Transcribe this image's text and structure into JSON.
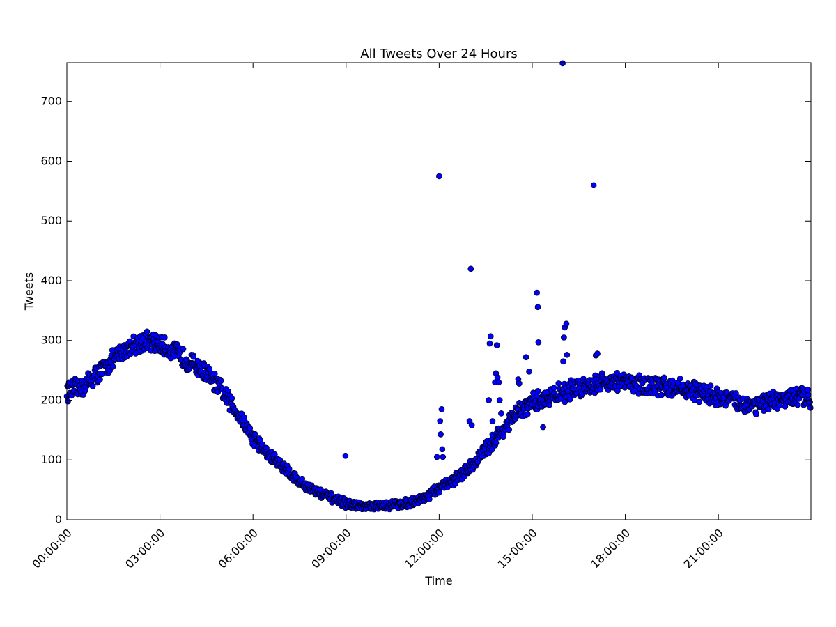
{
  "chart_data": {
    "type": "scatter",
    "title": "All Tweets Over 24 Hours",
    "xlabel": "Time",
    "ylabel": "Tweets",
    "x_unit": "hours",
    "xlim": [
      0,
      23.983
    ],
    "ylim": [
      0,
      765
    ],
    "grid": false,
    "legend": "none",
    "point_color": "#0000ff",
    "point_edge_color": "#000000",
    "x_ticks": [
      {
        "value": 0,
        "label": "00:00:00"
      },
      {
        "value": 3,
        "label": "03:00:00"
      },
      {
        "value": 6,
        "label": "06:00:00"
      },
      {
        "value": 9,
        "label": "09:00:00"
      },
      {
        "value": 12,
        "label": "12:00:00"
      },
      {
        "value": 15,
        "label": "15:00:00"
      },
      {
        "value": 18,
        "label": "18:00:00"
      },
      {
        "value": 21,
        "label": "21:00:00"
      }
    ],
    "y_ticks": [
      {
        "value": 0,
        "label": "0"
      },
      {
        "value": 100,
        "label": "100"
      },
      {
        "value": 200,
        "label": "200"
      },
      {
        "value": 300,
        "label": "300"
      },
      {
        "value": 400,
        "label": "400"
      },
      {
        "value": 500,
        "label": "500"
      },
      {
        "value": 600,
        "label": "600"
      },
      {
        "value": 700,
        "label": "700"
      }
    ],
    "trend_points": [
      [
        0.0,
        215
      ],
      [
        0.5,
        222
      ],
      [
        1.0,
        245
      ],
      [
        1.5,
        268
      ],
      [
        2.0,
        290
      ],
      [
        2.5,
        300
      ],
      [
        3.0,
        292
      ],
      [
        3.5,
        280
      ],
      [
        4.0,
        263
      ],
      [
        4.5,
        245
      ],
      [
        5.0,
        215
      ],
      [
        5.5,
        180
      ],
      [
        6.0,
        138
      ],
      [
        6.5,
        108
      ],
      [
        7.0,
        88
      ],
      [
        7.5,
        63
      ],
      [
        8.0,
        48
      ],
      [
        8.5,
        37
      ],
      [
        9.0,
        27
      ],
      [
        9.5,
        22
      ],
      [
        10.0,
        22
      ],
      [
        10.5,
        25
      ],
      [
        11.0,
        28
      ],
      [
        11.5,
        37
      ],
      [
        12.0,
        52
      ],
      [
        12.5,
        68
      ],
      [
        13.0,
        88
      ],
      [
        13.5,
        118
      ],
      [
        14.0,
        148
      ],
      [
        14.5,
        178
      ],
      [
        15.0,
        195
      ],
      [
        15.5,
        205
      ],
      [
        16.0,
        213
      ],
      [
        16.5,
        222
      ],
      [
        17.0,
        228
      ],
      [
        17.5,
        232
      ],
      [
        18.0,
        230
      ],
      [
        18.5,
        226
      ],
      [
        19.0,
        224
      ],
      [
        19.5,
        222
      ],
      [
        20.0,
        218
      ],
      [
        20.5,
        212
      ],
      [
        21.0,
        205
      ],
      [
        21.5,
        198
      ],
      [
        22.0,
        193
      ],
      [
        22.5,
        195
      ],
      [
        23.0,
        200
      ],
      [
        23.5,
        205
      ],
      [
        23.983,
        205
      ]
    ],
    "points_per_hour": 60,
    "noise_amplitude": 14,
    "outliers": [
      {
        "x": 8.98,
        "y": 107
      },
      {
        "x": 11.93,
        "y": 105
      },
      {
        "x": 12.0,
        "y": 575
      },
      {
        "x": 12.03,
        "y": 165
      },
      {
        "x": 12.05,
        "y": 143
      },
      {
        "x": 12.08,
        "y": 185
      },
      {
        "x": 12.1,
        "y": 118
      },
      {
        "x": 12.12,
        "y": 105
      },
      {
        "x": 12.98,
        "y": 165
      },
      {
        "x": 13.02,
        "y": 420
      },
      {
        "x": 13.05,
        "y": 158
      },
      {
        "x": 13.6,
        "y": 200
      },
      {
        "x": 13.63,
        "y": 295
      },
      {
        "x": 13.66,
        "y": 307
      },
      {
        "x": 13.72,
        "y": 165
      },
      {
        "x": 13.8,
        "y": 230
      },
      {
        "x": 13.83,
        "y": 245
      },
      {
        "x": 13.86,
        "y": 292
      },
      {
        "x": 13.88,
        "y": 238
      },
      {
        "x": 13.92,
        "y": 230
      },
      {
        "x": 13.95,
        "y": 200
      },
      {
        "x": 14.0,
        "y": 178
      },
      {
        "x": 14.55,
        "y": 235
      },
      {
        "x": 14.58,
        "y": 228
      },
      {
        "x": 14.8,
        "y": 272
      },
      {
        "x": 14.9,
        "y": 248
      },
      {
        "x": 15.15,
        "y": 380
      },
      {
        "x": 15.18,
        "y": 356
      },
      {
        "x": 15.2,
        "y": 297
      },
      {
        "x": 15.35,
        "y": 155
      },
      {
        "x": 15.98,
        "y": 764
      },
      {
        "x": 16.0,
        "y": 265
      },
      {
        "x": 16.02,
        "y": 305
      },
      {
        "x": 16.05,
        "y": 322
      },
      {
        "x": 16.1,
        "y": 328
      },
      {
        "x": 16.12,
        "y": 276
      },
      {
        "x": 16.98,
        "y": 560
      },
      {
        "x": 17.05,
        "y": 275
      },
      {
        "x": 17.1,
        "y": 278
      }
    ]
  }
}
